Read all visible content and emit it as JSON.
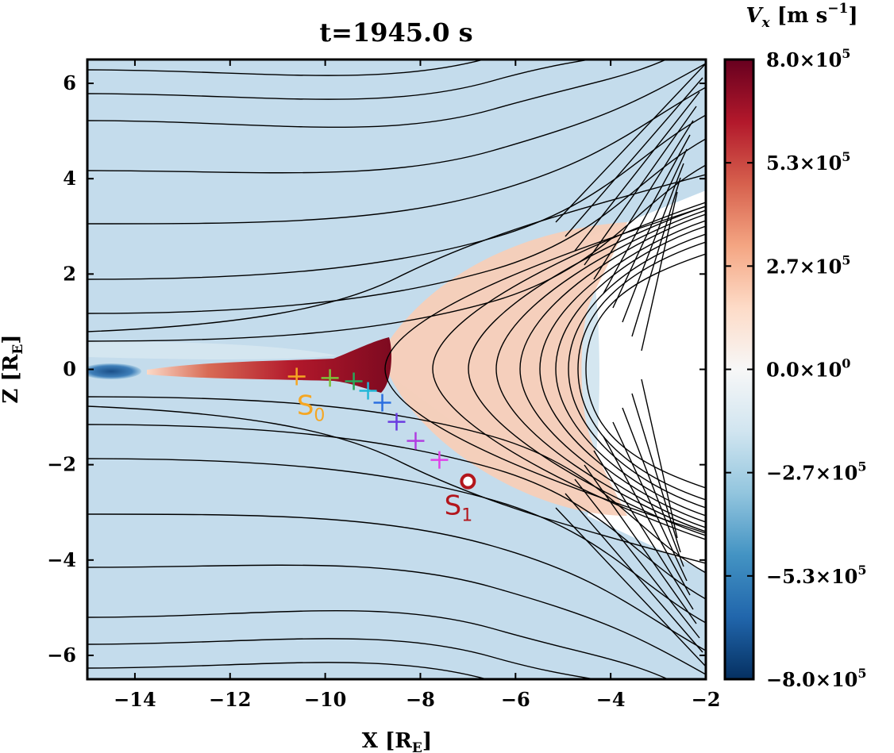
{
  "chart_data": {
    "type": "heatmap",
    "title": "t=1945.0 s",
    "xlabel": "X [R",
    "xlabel_sub": "E",
    "xlabel_end": "]",
    "ylabel": "Z [R",
    "ylabel_sub": "E",
    "ylabel_end": "]",
    "xlim": [
      -15,
      -2
    ],
    "ylim": [
      -6.5,
      6.5
    ],
    "x_ticks": [
      -14,
      -12,
      -10,
      -8,
      -6,
      -4,
      -2
    ],
    "y_ticks": [
      6,
      4,
      2,
      0,
      -2,
      -4,
      -6
    ],
    "grid": false,
    "colorbar": {
      "label_main": "V",
      "label_var_sub": "x",
      "label_units": " [m s",
      "label_exp": "−1",
      "label_end": "]",
      "min": -800000,
      "max": 800000,
      "colormap": "RdBu_r",
      "colors": [
        "#053061",
        "#2166ac",
        "#4393c3",
        "#92c5de",
        "#d1e5f0",
        "#f7f7f7",
        "#fddbc7",
        "#f4a582",
        "#d6604d",
        "#b2182b",
        "#67001f"
      ],
      "ticks": [
        {
          "value": 800000,
          "mant": "8.0",
          "exp": "5"
        },
        {
          "value": 533333,
          "mant": "5.3",
          "exp": "5"
        },
        {
          "value": 266667,
          "mant": "2.7",
          "exp": "5"
        },
        {
          "value": 0,
          "mant": "0.0",
          "exp": "0"
        },
        {
          "value": -266667,
          "mant": "−2.7",
          "exp": "5"
        },
        {
          "value": -533333,
          "mant": "−5.3",
          "exp": "5"
        },
        {
          "value": -800000,
          "mant": "−8.0",
          "exp": "5"
        }
      ]
    },
    "markers": [
      {
        "x": -10.6,
        "z": -0.15,
        "color": "#f5a623"
      },
      {
        "x": -9.9,
        "z": -0.18,
        "color": "#7cc23a"
      },
      {
        "x": -9.4,
        "z": -0.25,
        "color": "#27a85a"
      },
      {
        "x": -9.1,
        "z": -0.45,
        "color": "#22b8d8"
      },
      {
        "x": -8.8,
        "z": -0.7,
        "color": "#2a6fe0"
      },
      {
        "x": -8.5,
        "z": -1.1,
        "color": "#6a3be0"
      },
      {
        "x": -8.1,
        "z": -1.5,
        "color": "#b03ee0"
      },
      {
        "x": -7.6,
        "z": -1.9,
        "color": "#e040e8"
      }
    ],
    "annotations": [
      {
        "text": "S",
        "sub": "0",
        "x": -10.3,
        "z": -0.95,
        "color": "#f5a623"
      },
      {
        "text": "S",
        "sub": "1",
        "x": -7.2,
        "z": -3.05,
        "color": "#b3161c"
      }
    ],
    "point": {
      "x": -7.0,
      "z": -2.35,
      "color": "#b3161c"
    }
  }
}
